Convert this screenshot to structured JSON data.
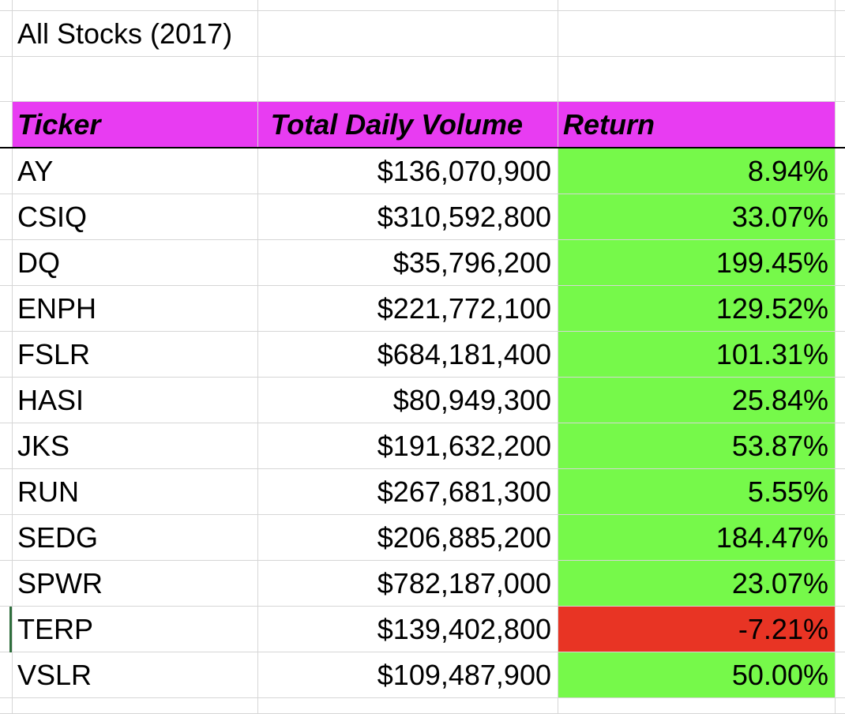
{
  "sheet": {
    "title_cell": "All Stocks (2017)",
    "header_color": "#e83cf2",
    "positive_color": "#76f94a",
    "negative_color": "#e83424",
    "columns": {
      "ticker": "Ticker",
      "volume": "Total Daily Volume",
      "return": "Return"
    },
    "rows": [
      {
        "ticker": "AY",
        "volume": "$136,070,900",
        "return": "8.94%",
        "sign": "positive"
      },
      {
        "ticker": "CSIQ",
        "volume": "$310,592,800",
        "return": "33.07%",
        "sign": "positive"
      },
      {
        "ticker": "DQ",
        "volume": "$35,796,200",
        "return": "199.45%",
        "sign": "positive"
      },
      {
        "ticker": "ENPH",
        "volume": "$221,772,100",
        "return": "129.52%",
        "sign": "positive"
      },
      {
        "ticker": "FSLR",
        "volume": "$684,181,400",
        "return": "101.31%",
        "sign": "positive"
      },
      {
        "ticker": "HASI",
        "volume": "$80,949,300",
        "return": "25.84%",
        "sign": "positive"
      },
      {
        "ticker": "JKS",
        "volume": "$191,632,200",
        "return": "53.87%",
        "sign": "positive"
      },
      {
        "ticker": "RUN",
        "volume": "$267,681,300",
        "return": "5.55%",
        "sign": "positive"
      },
      {
        "ticker": "SEDG",
        "volume": "$206,885,200",
        "return": "184.47%",
        "sign": "positive"
      },
      {
        "ticker": "SPWR",
        "volume": "$782,187,000",
        "return": "23.07%",
        "sign": "positive"
      },
      {
        "ticker": "TERP",
        "volume": "$139,402,800",
        "return": "-7.21%",
        "sign": "negative"
      },
      {
        "ticker": "VSLR",
        "volume": "$109,487,900",
        "return": "50.00%",
        "sign": "positive"
      }
    ]
  }
}
